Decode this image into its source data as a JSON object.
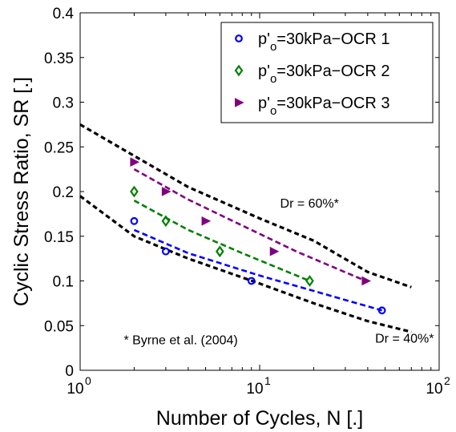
{
  "chart_data": {
    "type": "scatter",
    "xlabel": "Number of Cycles, N [.]",
    "ylabel": "Cyclic Stress Ratio, SR [.]",
    "x_scale": "log",
    "xlim": [
      1,
      100
    ],
    "ylim": [
      0,
      0.4
    ],
    "x_ticks": [
      1,
      10,
      100
    ],
    "x_tick_labels": [
      {
        "base": "10",
        "exp": "0"
      },
      {
        "base": "10",
        "exp": "1"
      },
      {
        "base": "10",
        "exp": "2"
      }
    ],
    "y_ticks": [
      0,
      0.05,
      0.1,
      0.15,
      0.2,
      0.25,
      0.3,
      0.35,
      0.4
    ],
    "y_tick_labels": [
      "0",
      "0.05",
      "0.1",
      "0.15",
      "0.2",
      "0.25",
      "0.3",
      "0.35",
      "0.4"
    ],
    "grid": false,
    "legend_position": "top-right",
    "series": [
      {
        "name": "p'o=30kPa−OCR 1",
        "name_parts": {
          "pre": "p'",
          "sub": "o",
          "post": "=30kPa−OCR 1"
        },
        "marker": "circle",
        "color": "#0000ff",
        "points": [
          [
            2,
            0.167
          ],
          [
            3,
            0.133
          ],
          [
            9,
            0.1
          ],
          [
            48,
            0.067
          ]
        ],
        "trend": [
          [
            2,
            0.157
          ],
          [
            4,
            0.131
          ],
          [
            10,
            0.106
          ],
          [
            48,
            0.067
          ]
        ]
      },
      {
        "name": "p'o=30kPa−OCR 2",
        "name_parts": {
          "pre": "p'",
          "sub": "o",
          "post": "=30kPa−OCR 2"
        },
        "marker": "diamond",
        "color": "#008000",
        "points": [
          [
            2,
            0.2
          ],
          [
            3,
            0.167
          ],
          [
            6,
            0.133
          ],
          [
            19,
            0.1
          ]
        ],
        "trend": [
          [
            2,
            0.19
          ],
          [
            4,
            0.157
          ],
          [
            8,
            0.131
          ],
          [
            19,
            0.1
          ]
        ]
      },
      {
        "name": "p'o=30kPa−OCR 3",
        "name_parts": {
          "pre": "p'",
          "sub": "o",
          "post": "=30kPa−OCR 3"
        },
        "marker": "triangle-right",
        "color": "#800080",
        "points": [
          [
            2,
            0.233
          ],
          [
            3,
            0.2
          ],
          [
            5,
            0.167
          ],
          [
            12,
            0.133
          ],
          [
            39,
            0.1
          ]
        ],
        "trend": [
          [
            2,
            0.225
          ],
          [
            4,
            0.191
          ],
          [
            8,
            0.162
          ],
          [
            16,
            0.133
          ],
          [
            39,
            0.1
          ]
        ]
      }
    ],
    "reference_lines": [
      {
        "label": "Dr = 60%*",
        "color": "#000000",
        "points": [
          [
            1,
            0.275
          ],
          [
            2,
            0.24
          ],
          [
            4,
            0.205
          ],
          [
            10,
            0.17
          ],
          [
            20,
            0.145
          ],
          [
            40,
            0.11
          ],
          [
            70,
            0.093
          ]
        ]
      },
      {
        "label": "Dr = 40%*",
        "color": "#000000",
        "points": [
          [
            1,
            0.195
          ],
          [
            2,
            0.15
          ],
          [
            4,
            0.125
          ],
          [
            10,
            0.097
          ],
          [
            20,
            0.075
          ],
          [
            40,
            0.055
          ],
          [
            70,
            0.043
          ]
        ]
      }
    ],
    "annotations": [
      {
        "text": "Dr = 60%*",
        "x": 13,
        "y": 0.182
      },
      {
        "text": "Dr = 40%*",
        "x": 44,
        "y": 0.031
      },
      {
        "text": "* Byrne et al. (2004)",
        "x": 1.75,
        "y": 0.029
      }
    ]
  }
}
